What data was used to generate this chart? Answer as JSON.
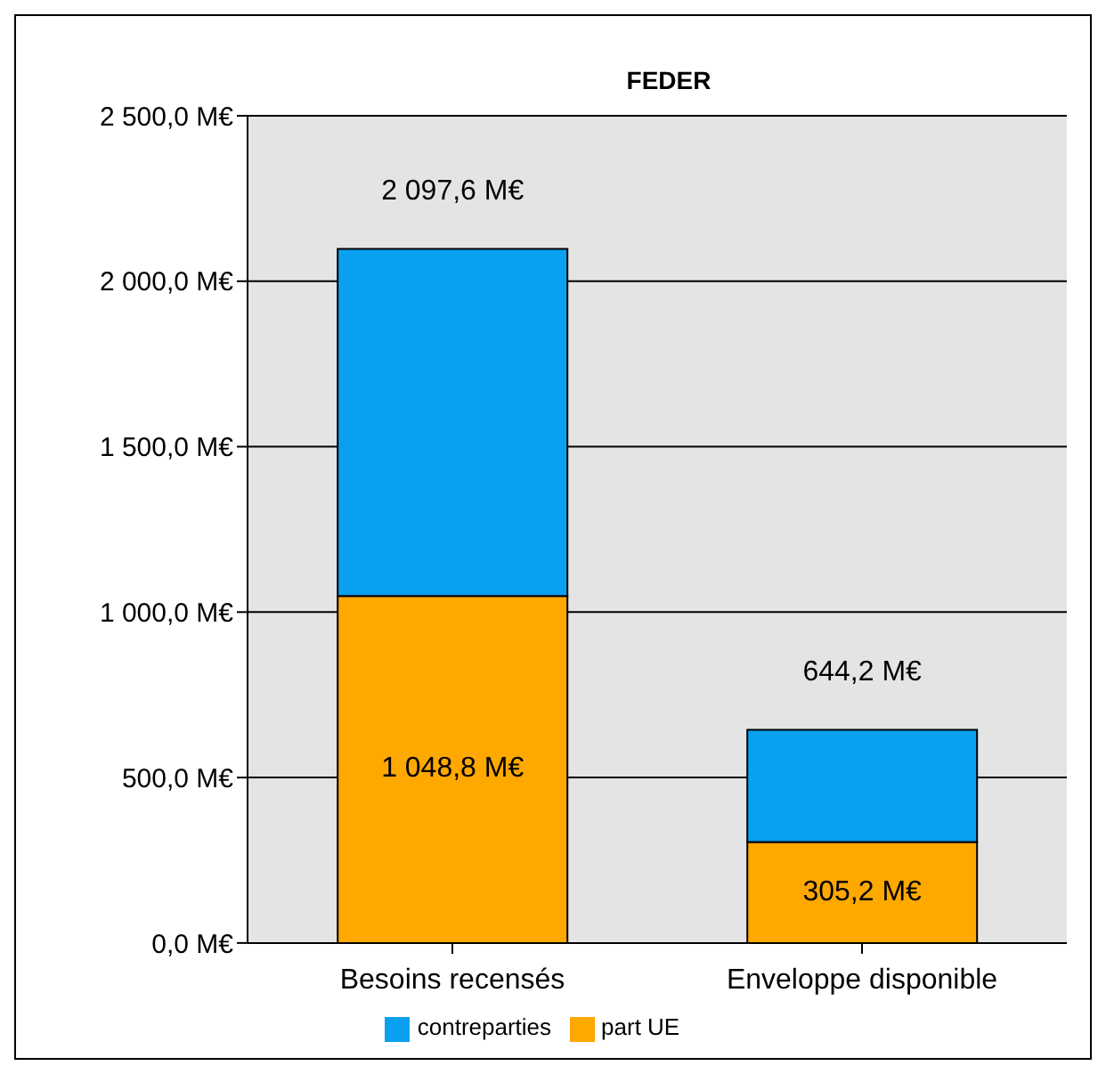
{
  "chart_data": {
    "type": "bar",
    "title": "FEDER",
    "stacked": true,
    "categories": [
      "Besoins recensés",
      "Enveloppe disponible"
    ],
    "series": [
      {
        "name": "part UE",
        "color": "#ffa800",
        "values": [
          1048.8,
          305.2
        ],
        "value_labels": [
          "1 048,8 M€",
          "305,2 M€"
        ]
      },
      {
        "name": "contreparties",
        "color": "#0aa0f0",
        "values": [
          1048.8,
          339.0
        ]
      }
    ],
    "totals": [
      "2 097,6 M€",
      "644,2 M€"
    ],
    "ylim": [
      0,
      2500
    ],
    "yticks": [
      {
        "value": 0,
        "label": "0,0 M€"
      },
      {
        "value": 500,
        "label": "500,0 M€"
      },
      {
        "value": 1000,
        "label": "1 000,0 M€"
      },
      {
        "value": 1500,
        "label": "1 500,0 M€"
      },
      {
        "value": 2000,
        "label": "2 000,0 M€"
      },
      {
        "value": 2500,
        "label": "2 500,0 M€"
      }
    ],
    "grid": "y",
    "legend": "bottom"
  }
}
